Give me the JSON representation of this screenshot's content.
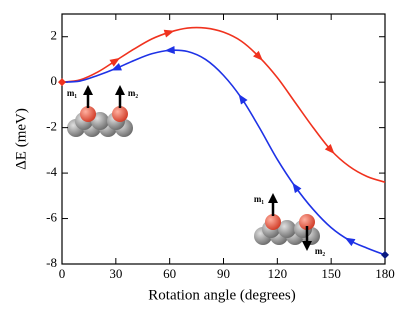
{
  "chart_data": {
    "type": "line",
    "x_label": "Rotation angle (degrees)",
    "y_label": "ΔE (meV)",
    "x": [
      0,
      10,
      20,
      30,
      40,
      50,
      60,
      70,
      80,
      90,
      100,
      110,
      120,
      130,
      140,
      150,
      160,
      170,
      180
    ],
    "series": [
      {
        "color": "#f0321e",
        "values": [
          0,
          0.1,
          0.45,
          0.95,
          1.45,
          1.9,
          2.2,
          2.38,
          2.38,
          2.2,
          1.8,
          1.1,
          0.2,
          -0.9,
          -2.0,
          -3.0,
          -3.7,
          -4.15,
          -4.4
        ]
      },
      {
        "color": "#1e32e6",
        "values": [
          0,
          0.05,
          0.3,
          0.6,
          0.95,
          1.25,
          1.4,
          1.35,
          1.0,
          0.3,
          -0.7,
          -2.0,
          -3.4,
          -4.6,
          -5.6,
          -6.4,
          -6.95,
          -7.3,
          -7.6
        ]
      }
    ],
    "xlim": [
      0,
      180
    ],
    "xticks": [
      0,
      30,
      60,
      90,
      120,
      150,
      180
    ],
    "ylim": [
      -8,
      3
    ],
    "yticks": [
      -8,
      -6,
      -4,
      -2,
      0,
      2
    ],
    "annotations": [
      "m₁",
      "m₂",
      "m₁",
      "m₂"
    ]
  }
}
